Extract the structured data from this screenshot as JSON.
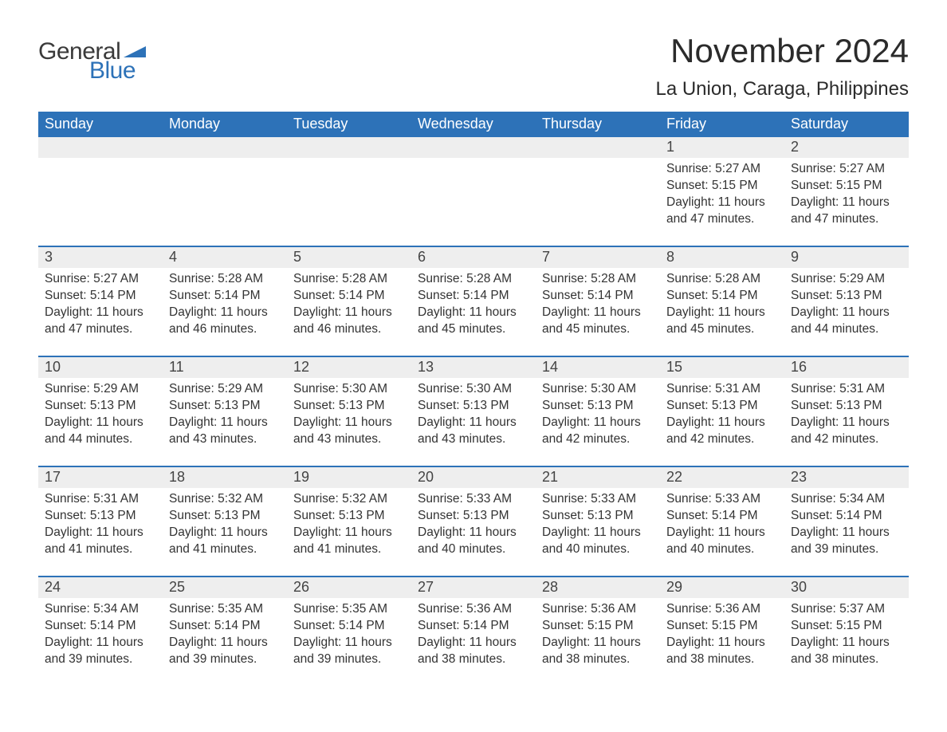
{
  "brand": {
    "general": "General",
    "blue": "Blue",
    "tri_color": "#2d72b8"
  },
  "header": {
    "month_title": "November 2024",
    "location": "La Union, Caraga, Philippines"
  },
  "colors": {
    "header_bg": "#2d72b8",
    "header_text": "#ffffff",
    "daynum_bg": "#eeeeee",
    "week_border": "#2d72b8",
    "body_text": "#333333",
    "page_bg": "#ffffff"
  },
  "day_labels": [
    "Sunday",
    "Monday",
    "Tuesday",
    "Wednesday",
    "Thursday",
    "Friday",
    "Saturday"
  ],
  "labels": {
    "sunrise": "Sunrise:",
    "sunset": "Sunset:",
    "daylight": "Daylight:"
  },
  "weeks": [
    [
      null,
      null,
      null,
      null,
      null,
      {
        "n": "1",
        "sunrise": "5:27 AM",
        "sunset": "5:15 PM",
        "daylight": "11 hours and 47 minutes."
      },
      {
        "n": "2",
        "sunrise": "5:27 AM",
        "sunset": "5:15 PM",
        "daylight": "11 hours and 47 minutes."
      }
    ],
    [
      {
        "n": "3",
        "sunrise": "5:27 AM",
        "sunset": "5:14 PM",
        "daylight": "11 hours and 47 minutes."
      },
      {
        "n": "4",
        "sunrise": "5:28 AM",
        "sunset": "5:14 PM",
        "daylight": "11 hours and 46 minutes."
      },
      {
        "n": "5",
        "sunrise": "5:28 AM",
        "sunset": "5:14 PM",
        "daylight": "11 hours and 46 minutes."
      },
      {
        "n": "6",
        "sunrise": "5:28 AM",
        "sunset": "5:14 PM",
        "daylight": "11 hours and 45 minutes."
      },
      {
        "n": "7",
        "sunrise": "5:28 AM",
        "sunset": "5:14 PM",
        "daylight": "11 hours and 45 minutes."
      },
      {
        "n": "8",
        "sunrise": "5:28 AM",
        "sunset": "5:14 PM",
        "daylight": "11 hours and 45 minutes."
      },
      {
        "n": "9",
        "sunrise": "5:29 AM",
        "sunset": "5:13 PM",
        "daylight": "11 hours and 44 minutes."
      }
    ],
    [
      {
        "n": "10",
        "sunrise": "5:29 AM",
        "sunset": "5:13 PM",
        "daylight": "11 hours and 44 minutes."
      },
      {
        "n": "11",
        "sunrise": "5:29 AM",
        "sunset": "5:13 PM",
        "daylight": "11 hours and 43 minutes."
      },
      {
        "n": "12",
        "sunrise": "5:30 AM",
        "sunset": "5:13 PM",
        "daylight": "11 hours and 43 minutes."
      },
      {
        "n": "13",
        "sunrise": "5:30 AM",
        "sunset": "5:13 PM",
        "daylight": "11 hours and 43 minutes."
      },
      {
        "n": "14",
        "sunrise": "5:30 AM",
        "sunset": "5:13 PM",
        "daylight": "11 hours and 42 minutes."
      },
      {
        "n": "15",
        "sunrise": "5:31 AM",
        "sunset": "5:13 PM",
        "daylight": "11 hours and 42 minutes."
      },
      {
        "n": "16",
        "sunrise": "5:31 AM",
        "sunset": "5:13 PM",
        "daylight": "11 hours and 42 minutes."
      }
    ],
    [
      {
        "n": "17",
        "sunrise": "5:31 AM",
        "sunset": "5:13 PM",
        "daylight": "11 hours and 41 minutes."
      },
      {
        "n": "18",
        "sunrise": "5:32 AM",
        "sunset": "5:13 PM",
        "daylight": "11 hours and 41 minutes."
      },
      {
        "n": "19",
        "sunrise": "5:32 AM",
        "sunset": "5:13 PM",
        "daylight": "11 hours and 41 minutes."
      },
      {
        "n": "20",
        "sunrise": "5:33 AM",
        "sunset": "5:13 PM",
        "daylight": "11 hours and 40 minutes."
      },
      {
        "n": "21",
        "sunrise": "5:33 AM",
        "sunset": "5:13 PM",
        "daylight": "11 hours and 40 minutes."
      },
      {
        "n": "22",
        "sunrise": "5:33 AM",
        "sunset": "5:14 PM",
        "daylight": "11 hours and 40 minutes."
      },
      {
        "n": "23",
        "sunrise": "5:34 AM",
        "sunset": "5:14 PM",
        "daylight": "11 hours and 39 minutes."
      }
    ],
    [
      {
        "n": "24",
        "sunrise": "5:34 AM",
        "sunset": "5:14 PM",
        "daylight": "11 hours and 39 minutes."
      },
      {
        "n": "25",
        "sunrise": "5:35 AM",
        "sunset": "5:14 PM",
        "daylight": "11 hours and 39 minutes."
      },
      {
        "n": "26",
        "sunrise": "5:35 AM",
        "sunset": "5:14 PM",
        "daylight": "11 hours and 39 minutes."
      },
      {
        "n": "27",
        "sunrise": "5:36 AM",
        "sunset": "5:14 PM",
        "daylight": "11 hours and 38 minutes."
      },
      {
        "n": "28",
        "sunrise": "5:36 AM",
        "sunset": "5:15 PM",
        "daylight": "11 hours and 38 minutes."
      },
      {
        "n": "29",
        "sunrise": "5:36 AM",
        "sunset": "5:15 PM",
        "daylight": "11 hours and 38 minutes."
      },
      {
        "n": "30",
        "sunrise": "5:37 AM",
        "sunset": "5:15 PM",
        "daylight": "11 hours and 38 minutes."
      }
    ]
  ]
}
